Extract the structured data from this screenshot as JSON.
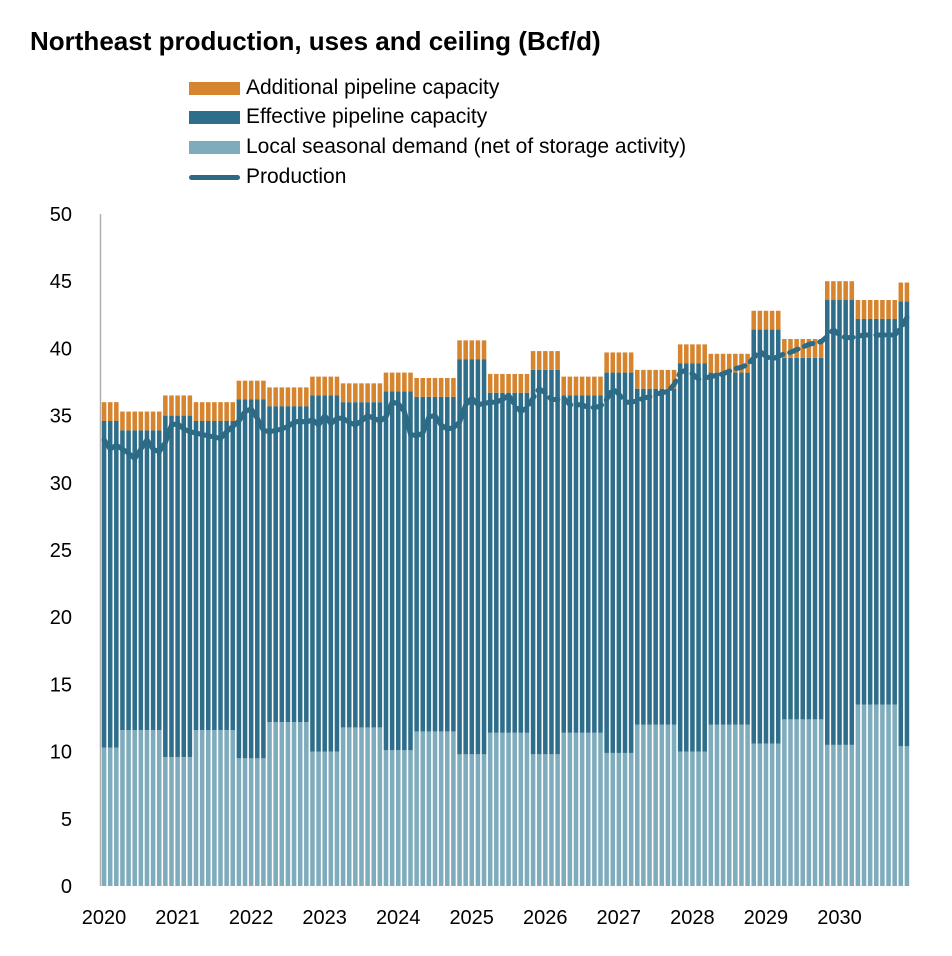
{
  "chart_data": {
    "type": "bar",
    "title": "Northeast production, uses and ceiling (Bcf/d)",
    "xlabel": "",
    "ylabel": "",
    "ylim": [
      0,
      50
    ],
    "yticks": [
      "0",
      "5",
      "10",
      "15",
      "20",
      "25",
      "30",
      "35",
      "40",
      "45",
      "50"
    ],
    "xticks": [
      "2020",
      "2021",
      "2022",
      "2023",
      "2024",
      "2025",
      "2026",
      "2027",
      "2028",
      "2029",
      "2030"
    ],
    "legend_position": "top",
    "colors": {
      "additional": "#D6842E",
      "effective": "#2E6E8A",
      "local": "#7FACBC",
      "production": "#2C6A85"
    },
    "legend": [
      {
        "key": "additional",
        "label": "Additional pipeline capacity"
      },
      {
        "key": "effective",
        "label": "Effective pipeline capacity"
      },
      {
        "key": "local",
        "label": "Local seasonal demand (net of storage activity)"
      },
      {
        "key": "production",
        "label": "Production"
      }
    ],
    "stack_note": "monthly stacked bars Jan 2020 - Dec 2030; values constant within seasonal periods",
    "segments": [
      {
        "period": "Jan-Mar 2020",
        "months": 3,
        "local": 10.3,
        "effective": 24.3,
        "additional": 1.4
      },
      {
        "period": "Apr-Oct 2020",
        "months": 7,
        "local": 11.6,
        "effective": 22.3,
        "additional": 1.4
      },
      {
        "period": "Nov 2020-Mar 2021",
        "months": 5,
        "local": 9.6,
        "effective": 25.4,
        "additional": 1.5
      },
      {
        "period": "Apr-Oct 2021",
        "months": 7,
        "local": 11.6,
        "effective": 23.0,
        "additional": 1.4
      },
      {
        "period": "Nov 2021-Mar 2022",
        "months": 5,
        "local": 9.5,
        "effective": 26.7,
        "additional": 1.4
      },
      {
        "period": "Apr-Oct 2022",
        "months": 7,
        "local": 12.2,
        "effective": 23.5,
        "additional": 1.4
      },
      {
        "period": "Nov 2022-Mar 2023",
        "months": 5,
        "local": 10.0,
        "effective": 26.5,
        "additional": 1.4
      },
      {
        "period": "Apr-Oct 2023",
        "months": 7,
        "local": 11.8,
        "effective": 24.2,
        "additional": 1.4
      },
      {
        "period": "Nov 2023-Mar 2024",
        "months": 5,
        "local": 10.1,
        "effective": 26.7,
        "additional": 1.4
      },
      {
        "period": "Apr-Oct 2024",
        "months": 7,
        "local": 11.5,
        "effective": 24.9,
        "additional": 1.4
      },
      {
        "period": "Nov 2024-Mar 2025",
        "months": 5,
        "local": 9.8,
        "effective": 29.4,
        "additional": 1.4
      },
      {
        "period": "Apr-Oct 2025",
        "months": 7,
        "local": 11.4,
        "effective": 25.3,
        "additional": 1.4
      },
      {
        "period": "Nov 2025-Mar 2026",
        "months": 5,
        "local": 9.8,
        "effective": 28.6,
        "additional": 1.4
      },
      {
        "period": "Apr-Oct 2026",
        "months": 7,
        "local": 11.4,
        "effective": 25.1,
        "additional": 1.4
      },
      {
        "period": "Nov 2026-Mar 2027",
        "months": 5,
        "local": 9.9,
        "effective": 28.3,
        "additional": 1.5
      },
      {
        "period": "Apr-Oct 2027",
        "months": 7,
        "local": 12.0,
        "effective": 25.0,
        "additional": 1.4
      },
      {
        "period": "Nov 2027-Mar 2028",
        "months": 5,
        "local": 10.0,
        "effective": 28.9,
        "additional": 1.4
      },
      {
        "period": "Apr-Oct 2028",
        "months": 7,
        "local": 12.0,
        "effective": 26.2,
        "additional": 1.4
      },
      {
        "period": "Nov 2028-Mar 2029",
        "months": 5,
        "local": 10.6,
        "effective": 30.8,
        "additional": 1.4
      },
      {
        "period": "Apr-Oct 2029",
        "months": 7,
        "local": 12.4,
        "effective": 26.9,
        "additional": 1.4
      },
      {
        "period": "Nov 2029-Mar 2030",
        "months": 5,
        "local": 10.5,
        "effective": 33.1,
        "additional": 1.4
      },
      {
        "period": "Apr-Oct 2030",
        "months": 7,
        "local": 13.5,
        "effective": 28.7,
        "additional": 1.4
      },
      {
        "period": "Nov-Dec 2030",
        "months": 2,
        "local": 10.4,
        "effective": 33.1,
        "additional": 1.4
      }
    ],
    "production_forecast_start_index": 66,
    "production": [
      33.2,
      32.5,
      32.8,
      32.5,
      32.2,
      31.8,
      32.5,
      33.2,
      32.5,
      32.3,
      33.0,
      34.3,
      34.4,
      34.0,
      33.8,
      33.7,
      33.6,
      33.5,
      33.4,
      33.3,
      33.8,
      34.2,
      34.6,
      35.3,
      35.5,
      34.8,
      33.9,
      33.8,
      33.9,
      34.0,
      34.2,
      34.5,
      34.6,
      34.5,
      34.7,
      34.3,
      35.0,
      34.4,
      34.8,
      34.8,
      34.5,
      34.3,
      34.6,
      35.0,
      34.8,
      34.6,
      34.9,
      36.0,
      35.9,
      35.3,
      33.6,
      33.5,
      33.7,
      34.9,
      35.0,
      34.3,
      34.0,
      34.1,
      34.5,
      35.8,
      36.3,
      35.8,
      35.9,
      36.0,
      36.0,
      36.2,
      36.5,
      35.8,
      35.3,
      35.6,
      36.3,
      37.0,
      36.7,
      36.2,
      36.2,
      36.3,
      35.8,
      35.8,
      35.8,
      35.6,
      35.6,
      35.7,
      36.2,
      37.0,
      36.6,
      36.0,
      36.0,
      36.1,
      36.3,
      36.4,
      36.6,
      36.7,
      36.8,
      37.3,
      38.2,
      38.4,
      38.1,
      37.7,
      37.8,
      37.9,
      38.0,
      38.1,
      38.3,
      38.5,
      38.6,
      38.8,
      39.3,
      39.8,
      39.4,
      39.2,
      39.4,
      39.6,
      39.7,
      39.9,
      40.1,
      40.3,
      40.4,
      40.5,
      40.9,
      41.4,
      41.0,
      40.8,
      40.8,
      40.9,
      41.0,
      41.0,
      41.0,
      41.0,
      41.0,
      41.0,
      41.5,
      42.3
    ]
  }
}
